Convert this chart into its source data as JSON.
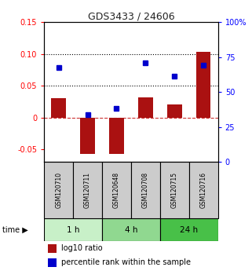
{
  "title": "GDS3433 / 24606",
  "samples": [
    "GSM120710",
    "GSM120711",
    "GSM120648",
    "GSM120708",
    "GSM120715",
    "GSM120716"
  ],
  "log10_ratio": [
    0.03,
    -0.057,
    -0.057,
    0.032,
    0.02,
    0.103
  ],
  "percentile_rank": [
    0.079,
    0.005,
    0.014,
    0.086,
    0.065,
    0.082
  ],
  "ylim_left": [
    -0.07,
    0.15
  ],
  "ylim_right": [
    0,
    100
  ],
  "yticks_left": [
    -0.05,
    0.0,
    0.05,
    0.1,
    0.15
  ],
  "ytick_labels_left": [
    "-0.05",
    "0",
    "0.05",
    "0.10",
    "0.15"
  ],
  "yticks_right": [
    0,
    25,
    50,
    75,
    100
  ],
  "ytick_labels_right": [
    "0",
    "25",
    "50",
    "75",
    "100%"
  ],
  "dotted_lines": [
    0.1,
    0.05
  ],
  "zero_line": 0.0,
  "group_positions": [
    [
      0,
      1,
      "#c8f0c8",
      "1 h"
    ],
    [
      2,
      3,
      "#90d890",
      "4 h"
    ],
    [
      4,
      5,
      "#48c048",
      "24 h"
    ]
  ],
  "bar_color": "#aa1111",
  "dot_color": "#0000cc",
  "bar_width": 0.5,
  "legend_bar_label": "log10 ratio",
  "legend_dot_label": "percentile rank within the sample",
  "sample_box_color": "#cccccc",
  "time_label": "time"
}
